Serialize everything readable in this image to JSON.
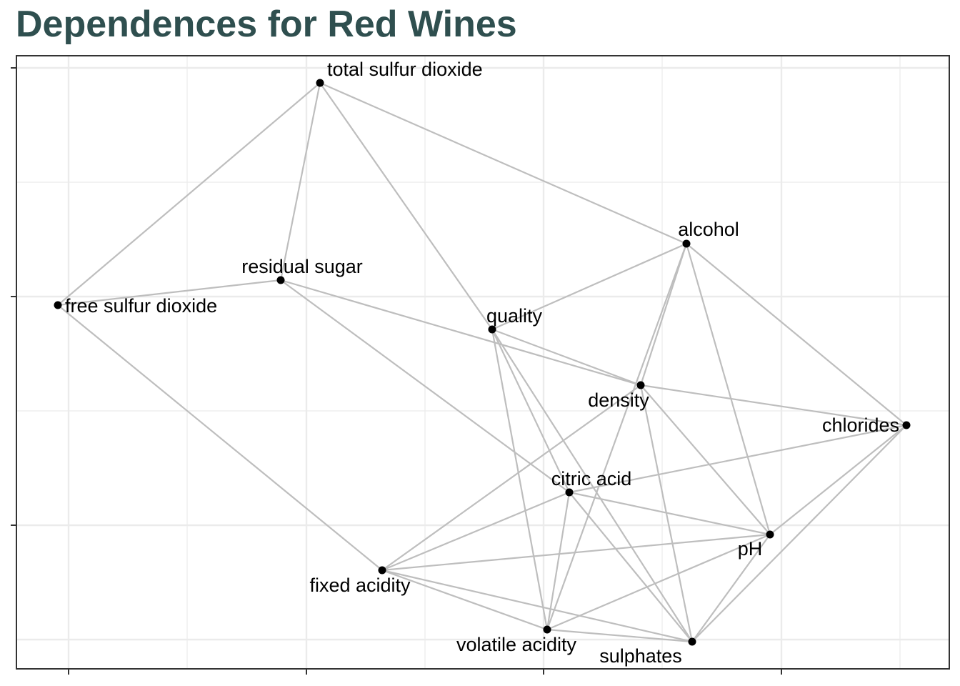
{
  "title": "Dependences for Red Wines",
  "colors": {
    "title": "#2f4f4f",
    "edge": "#bebebe",
    "node": "#000000",
    "grid": "#ebebeb",
    "panel_border": "#333333"
  },
  "graph": {
    "nodes": [
      {
        "id": "total_sulfur_dioxide",
        "label": "total sulfur dioxide"
      },
      {
        "id": "residual_sugar",
        "label": "residual sugar"
      },
      {
        "id": "free_sulfur_dioxide",
        "label": "free sulfur dioxide"
      },
      {
        "id": "alcohol",
        "label": "alcohol"
      },
      {
        "id": "quality",
        "label": "quality"
      },
      {
        "id": "density",
        "label": "density"
      },
      {
        "id": "chlorides",
        "label": "chlorides"
      },
      {
        "id": "citric_acid",
        "label": "citric acid"
      },
      {
        "id": "pH",
        "label": "pH"
      },
      {
        "id": "fixed_acidity",
        "label": "fixed acidity"
      },
      {
        "id": "volatile_acidity",
        "label": "volatile acidity"
      },
      {
        "id": "sulphates",
        "label": "sulphates"
      }
    ],
    "edges": [
      [
        "total_sulfur_dioxide",
        "free_sulfur_dioxide"
      ],
      [
        "total_sulfur_dioxide",
        "residual_sugar"
      ],
      [
        "total_sulfur_dioxide",
        "quality"
      ],
      [
        "total_sulfur_dioxide",
        "alcohol"
      ],
      [
        "free_sulfur_dioxide",
        "residual_sugar"
      ],
      [
        "free_sulfur_dioxide",
        "fixed_acidity"
      ],
      [
        "residual_sugar",
        "density"
      ],
      [
        "residual_sugar",
        "citric_acid"
      ],
      [
        "alcohol",
        "quality"
      ],
      [
        "alcohol",
        "density"
      ],
      [
        "alcohol",
        "chlorides"
      ],
      [
        "alcohol",
        "pH"
      ],
      [
        "alcohol",
        "volatile_acidity"
      ],
      [
        "quality",
        "density"
      ],
      [
        "quality",
        "citric_acid"
      ],
      [
        "quality",
        "volatile_acidity"
      ],
      [
        "quality",
        "sulphates"
      ],
      [
        "density",
        "chlorides"
      ],
      [
        "density",
        "fixed_acidity"
      ],
      [
        "density",
        "pH"
      ],
      [
        "density",
        "sulphates"
      ],
      [
        "chlorides",
        "citric_acid"
      ],
      [
        "chlorides",
        "pH"
      ],
      [
        "chlorides",
        "sulphates"
      ],
      [
        "citric_acid",
        "fixed_acidity"
      ],
      [
        "citric_acid",
        "pH"
      ],
      [
        "citric_acid",
        "volatile_acidity"
      ],
      [
        "citric_acid",
        "sulphates"
      ],
      [
        "pH",
        "fixed_acidity"
      ],
      [
        "pH",
        "volatile_acidity"
      ],
      [
        "pH",
        "sulphates"
      ],
      [
        "fixed_acidity",
        "volatile_acidity"
      ],
      [
        "fixed_acidity",
        "sulphates"
      ],
      [
        "volatile_acidity",
        "sulphates"
      ]
    ]
  }
}
